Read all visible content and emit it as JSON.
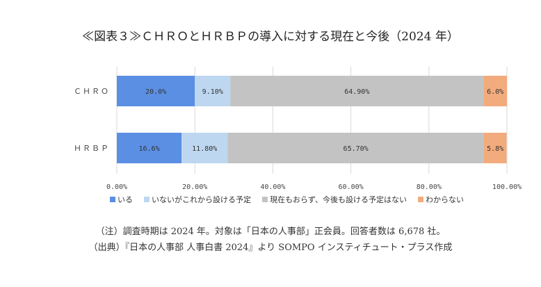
{
  "title": "≪図表３≫ＣＨＲＯとＨＲＢＰの導入に対する現在と今後（2024 年）",
  "notes": [
    "（注）調査時期は 2024 年。対象は「日本の人事部」正会員。回答者数は 6,678 社。",
    "（出典）『日本の人事部 人事白書 2024』より SOMPO インスティチュート・プラス作成"
  ],
  "chart_data": {
    "type": "bar",
    "orientation": "horizontal",
    "stacked": true,
    "percent_scale": true,
    "title": "≪図表３≫ＣＨＲＯとＨＲＢＰの導入に対する現在と今後（2024 年）",
    "categories": [
      "ＣＨＲＯ",
      "ＨＲＢＰ"
    ],
    "series": [
      {
        "name": "いる",
        "values": [
          20.0,
          16.6
        ],
        "labels": [
          "20.0%",
          "16.6%"
        ],
        "color": "#5b8fe3"
      },
      {
        "name": "いないがこれから設ける予定",
        "values": [
          9.1,
          11.8
        ],
        "labels": [
          "9.10%",
          "11.80%"
        ],
        "color": "#bed7f0"
      },
      {
        "name": "現在もおらず、今後も設ける予定はない",
        "values": [
          64.9,
          65.7
        ],
        "labels": [
          "64.90%",
          "65.70%"
        ],
        "color": "#c3c3c3"
      },
      {
        "name": "わからない",
        "values": [
          6.0,
          5.8
        ],
        "labels": [
          "6.0%",
          "5.8%"
        ],
        "color": "#f2ab7c"
      }
    ],
    "x_ticks": [
      "0.00%",
      "20.00%",
      "40.00%",
      "60.00%",
      "80.00%",
      "100.00%"
    ],
    "xlim": [
      0,
      100
    ],
    "grid": true,
    "legend": "bottom"
  }
}
